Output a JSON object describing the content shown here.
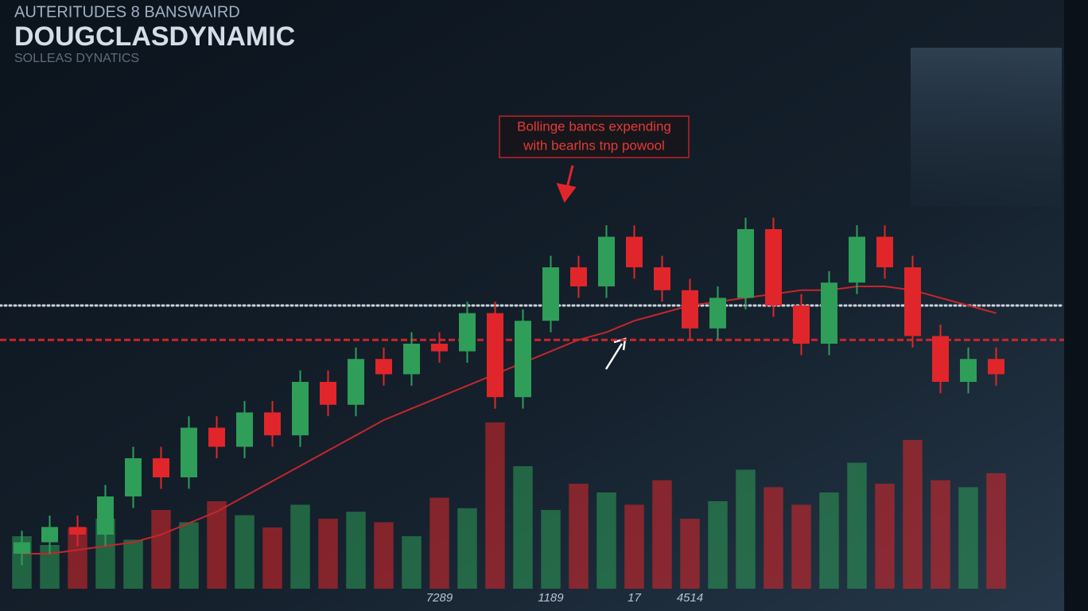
{
  "chart_data": {
    "type": "candlestick",
    "supertitle": "AUTERITUDES 8 BANSWAIRD",
    "title": "DOUGCLASDYNAMIC",
    "subtitle": "SOLLEAS DYNATICS",
    "annotation": [
      "Bollinge bancs expending",
      "with bearlns tnp powool"
    ],
    "categories": [
      null,
      null,
      null,
      null,
      null,
      null,
      null,
      null,
      null,
      null,
      null,
      null,
      null,
      null,
      null,
      "7289",
      null,
      null,
      null,
      "1189",
      null,
      null,
      "17",
      null,
      "4514",
      null,
      null,
      null,
      null,
      null,
      null,
      null,
      null,
      null,
      null,
      null
    ],
    "candles": {
      "open": [
        5,
        8,
        12,
        10,
        20,
        30,
        25,
        38,
        33,
        42,
        36,
        50,
        44,
        56,
        52,
        60,
        58,
        68,
        46,
        66,
        80,
        75,
        88,
        80,
        74,
        64,
        72,
        90,
        70,
        60,
        76,
        88,
        80,
        62,
        50,
        56
      ],
      "high": [
        11,
        15,
        15,
        23,
        33,
        33,
        41,
        41,
        45,
        45,
        53,
        53,
        59,
        59,
        63,
        63,
        71,
        71,
        69,
        83,
        83,
        91,
        91,
        83,
        77,
        75,
        93,
        93,
        73,
        79,
        91,
        91,
        83,
        65,
        59,
        59
      ],
      "low": [
        2,
        5,
        7,
        7,
        17,
        22,
        22,
        30,
        30,
        33,
        33,
        41,
        41,
        49,
        49,
        55,
        55,
        43,
        43,
        63,
        72,
        72,
        77,
        71,
        61,
        61,
        69,
        67,
        57,
        57,
        73,
        77,
        59,
        47,
        47,
        49
      ],
      "close": [
        8,
        12,
        10,
        20,
        30,
        25,
        38,
        33,
        42,
        36,
        50,
        44,
        56,
        52,
        60,
        58,
        68,
        46,
        66,
        80,
        75,
        88,
        80,
        74,
        64,
        72,
        90,
        70,
        60,
        76,
        88,
        80,
        62,
        50,
        56,
        52
      ]
    },
    "volume": {
      "values": [
        30,
        25,
        35,
        40,
        28,
        45,
        38,
        50,
        42,
        35,
        48,
        40,
        44,
        38,
        30,
        52,
        46,
        95,
        70,
        45,
        60,
        55,
        48,
        62,
        40,
        50,
        68,
        58,
        48,
        55,
        72,
        60,
        85,
        62,
        58,
        66
      ]
    },
    "ma": {
      "values": [
        5,
        5,
        6,
        7,
        8,
        10,
        13,
        16,
        20,
        24,
        28,
        32,
        36,
        40,
        43,
        46,
        49,
        52,
        55,
        58,
        61,
        63,
        66,
        68,
        70,
        71,
        72,
        73,
        74,
        74,
        75,
        75,
        74,
        72,
        70,
        68
      ],
      "color": "#c4262b"
    },
    "hlines": [
      {
        "value": 70,
        "color": "#dfe7ef",
        "style": "dotted"
      },
      {
        "value": 61,
        "color": "#e0262a",
        "style": "dashed"
      }
    ],
    "up_color": "#2e9e58",
    "down_color": "#e0262a",
    "ylim": [
      0,
      100
    ],
    "volume_ylim": [
      0,
      100
    ]
  }
}
